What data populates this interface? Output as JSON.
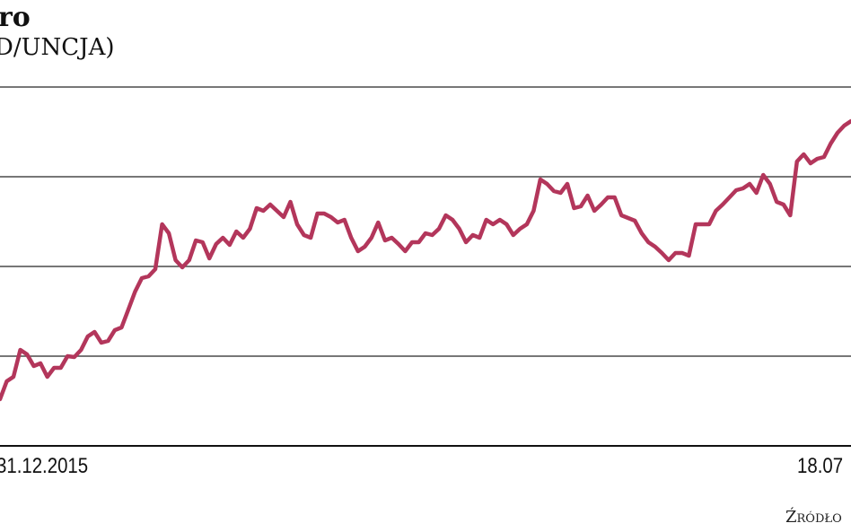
{
  "chart_data": {
    "type": "line",
    "title": "ro",
    "ylabel": "D/UNCJA)",
    "x_tick_labels": [
      "31.12.2015",
      "18.07"
    ],
    "ylim": [
      1000,
      1400
    ],
    "y_gridlines": [
      1100,
      1200,
      1300,
      1400
    ],
    "grid": true,
    "series": [
      {
        "color": "#b3365b",
        "values": [
          1052,
          1072,
          1077,
          1107,
          1102,
          1089,
          1092,
          1077,
          1087,
          1087,
          1100,
          1099,
          1107,
          1122,
          1127,
          1115,
          1117,
          1129,
          1132,
          1152,
          1172,
          1187,
          1189,
          1197,
          1247,
          1237,
          1207,
          1199,
          1207,
          1229,
          1227,
          1209,
          1225,
          1232,
          1224,
          1239,
          1232,
          1242,
          1265,
          1262,
          1269,
          1262,
          1255,
          1272,
          1247,
          1235,
          1232,
          1259,
          1259,
          1255,
          1249,
          1252,
          1232,
          1217,
          1222,
          1232,
          1249,
          1229,
          1232,
          1225,
          1217,
          1227,
          1227,
          1237,
          1235,
          1242,
          1257,
          1252,
          1242,
          1227,
          1235,
          1232,
          1252,
          1247,
          1252,
          1247,
          1235,
          1242,
          1247,
          1262,
          1297,
          1292,
          1284,
          1282,
          1292,
          1265,
          1267,
          1279,
          1262,
          1269,
          1277,
          1277,
          1257,
          1254,
          1251,
          1237,
          1227,
          1222,
          1215,
          1207,
          1215,
          1215,
          1212,
          1247,
          1247,
          1247,
          1262,
          1269,
          1277,
          1285,
          1287,
          1292,
          1282,
          1302,
          1292,
          1272,
          1269,
          1257,
          1317,
          1325,
          1315,
          1320,
          1322,
          1337,
          1349,
          1357,
          1362
        ]
      }
    ],
    "source": "Źródło"
  }
}
